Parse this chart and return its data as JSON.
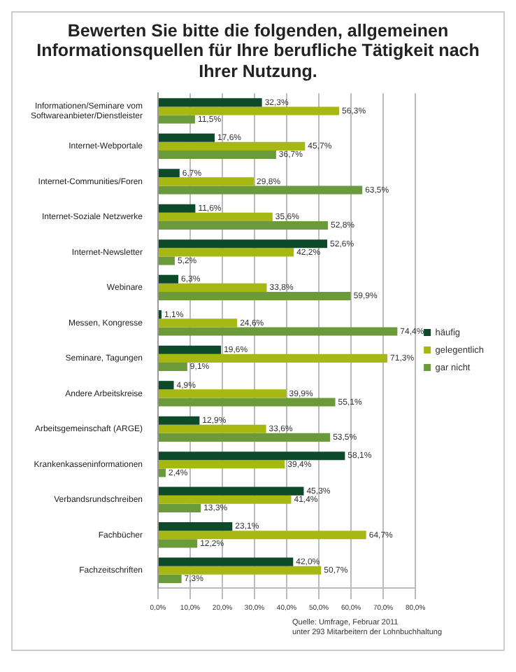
{
  "chart_data": {
    "type": "bar",
    "orientation": "horizontal",
    "title": "Bewerten Sie bitte die folgenden, allgemeinen Informationsquellen für Ihre berufliche Tätigkeit nach Ihrer Nutzung.",
    "categories": [
      "Informationen/Seminare vom Softwareanbieter/Dienstleister",
      "Internet-Webportale",
      "Internet-Communities/Foren",
      "Internet-Soziale Netzwerke",
      "Internet-Newsletter",
      "Webinare",
      "Messen, Kongresse",
      "Seminare, Tagungen",
      "Andere Arbeitskreise",
      "Arbeitsgemeinschaft (ARGE)",
      "Krankenkasseninformationen",
      "Verbandsrundschreiben",
      "Fachbücher",
      "Fachzeitschriften"
    ],
    "series": [
      {
        "name": "häufig",
        "color": "#0d4a2a",
        "values": [
          32.3,
          17.6,
          6.7,
          11.6,
          52.6,
          6.3,
          1.1,
          19.6,
          4.9,
          12.9,
          58.1,
          45.3,
          23.1,
          42.0
        ],
        "value_labels": [
          "32,3%",
          "17,6%",
          "6,7%",
          "11,6%",
          "52,6%",
          "6,3%",
          "1,1%",
          "19,6%",
          "4,9%",
          "12,9%",
          "58,1%",
          "45,3%",
          "23,1%",
          "42,0%"
        ]
      },
      {
        "name": "gelegentlich",
        "color": "#a8b812",
        "values": [
          56.3,
          45.7,
          29.8,
          35.6,
          42.2,
          33.8,
          24.6,
          71.3,
          39.9,
          33.6,
          39.4,
          41.4,
          64.7,
          50.7
        ],
        "value_labels": [
          "56,3%",
          "45,7%",
          "29,8%",
          "35,6%",
          "42,2%",
          "33,8%",
          "24,6%",
          "71,3%",
          "39,9%",
          "33,6%",
          "39,4%",
          "41,4%",
          "64,7%",
          "50,7%"
        ]
      },
      {
        "name": "gar nicht",
        "color": "#6a9a3a",
        "values": [
          11.5,
          36.7,
          63.5,
          52.8,
          5.2,
          59.9,
          74.4,
          9.1,
          55.1,
          53.5,
          2.4,
          13.3,
          12.2,
          7.3
        ],
        "value_labels": [
          "11,5%",
          "36,7%",
          "63,5%",
          "52,8%",
          "5,2%",
          "59,9%",
          "74,4%",
          "9,1%",
          "55,1%",
          "53,5%",
          "2,4%",
          "13,3%",
          "12,2%",
          "7,3%"
        ]
      }
    ],
    "xlim": [
      0,
      80
    ],
    "xticks": [
      {
        "value": 0,
        "label": "0,0%"
      },
      {
        "value": 10,
        "label": "10,0%"
      },
      {
        "value": 20,
        "label": "20,0%"
      },
      {
        "value": 30,
        "label": "30,0%"
      },
      {
        "value": 40,
        "label": "40,0%"
      },
      {
        "value": 50,
        "label": "50,0%"
      },
      {
        "value": 60,
        "label": "60,0%"
      },
      {
        "value": 70,
        "label": "70,0%"
      },
      {
        "value": 80,
        "label": "80,0%"
      }
    ],
    "grid": "x",
    "legend": "right",
    "annotations": [
      "Quelle: Umfrage, Februar 2011",
      "unter 293 Mitarbeitern der Lohnbuchhaltung"
    ]
  }
}
